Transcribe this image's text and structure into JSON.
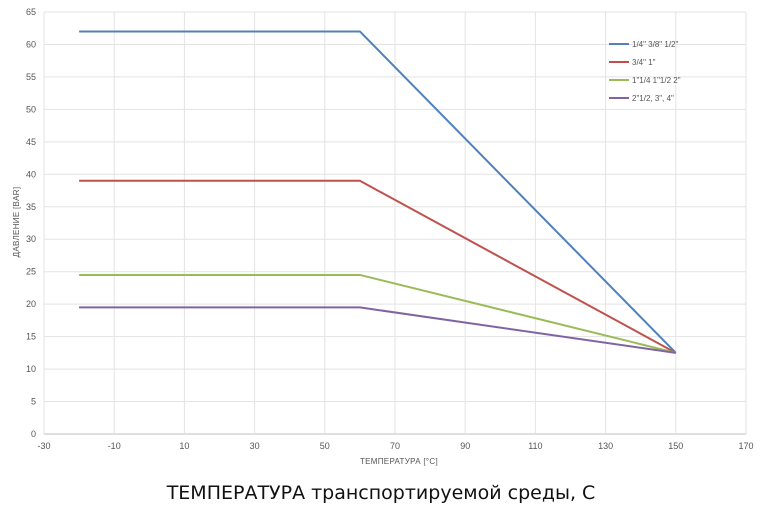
{
  "caption": "ТЕМПЕРАТУРА транспортируемой среды, С",
  "chart_data": {
    "type": "line",
    "title": "",
    "xlabel": "ТЕМПЕРАТУРА [°C]",
    "ylabel": "ДАВЛЕНИЕ [BAR]",
    "xlim": [
      -30,
      170
    ],
    "ylim": [
      0,
      65
    ],
    "x_ticks": [
      -30,
      -10,
      10,
      30,
      50,
      70,
      90,
      110,
      130,
      150,
      170
    ],
    "y_ticks": [
      0,
      5,
      10,
      15,
      20,
      25,
      30,
      35,
      40,
      45,
      50,
      55,
      60,
      65
    ],
    "grid": true,
    "legend_position": "top-right",
    "series": [
      {
        "name": "1/4\" 3/8\" 1/2\"",
        "color": "#4F81BD",
        "x": [
          -20,
          60,
          150
        ],
        "y": [
          62,
          62,
          12.5
        ]
      },
      {
        "name": "3/4\" 1\"",
        "color": "#C0504D",
        "x": [
          -20,
          60,
          150
        ],
        "y": [
          39,
          39,
          12.5
        ]
      },
      {
        "name": "1\"1/4 1\"1/2 2\"",
        "color": "#9BBB59",
        "x": [
          -20,
          60,
          150
        ],
        "y": [
          24.5,
          24.5,
          12.5
        ]
      },
      {
        "name": "2\"1/2, 3\", 4\"",
        "color": "#8064A2",
        "x": [
          -20,
          60,
          150
        ],
        "y": [
          19.5,
          19.5,
          12.5
        ]
      }
    ]
  }
}
